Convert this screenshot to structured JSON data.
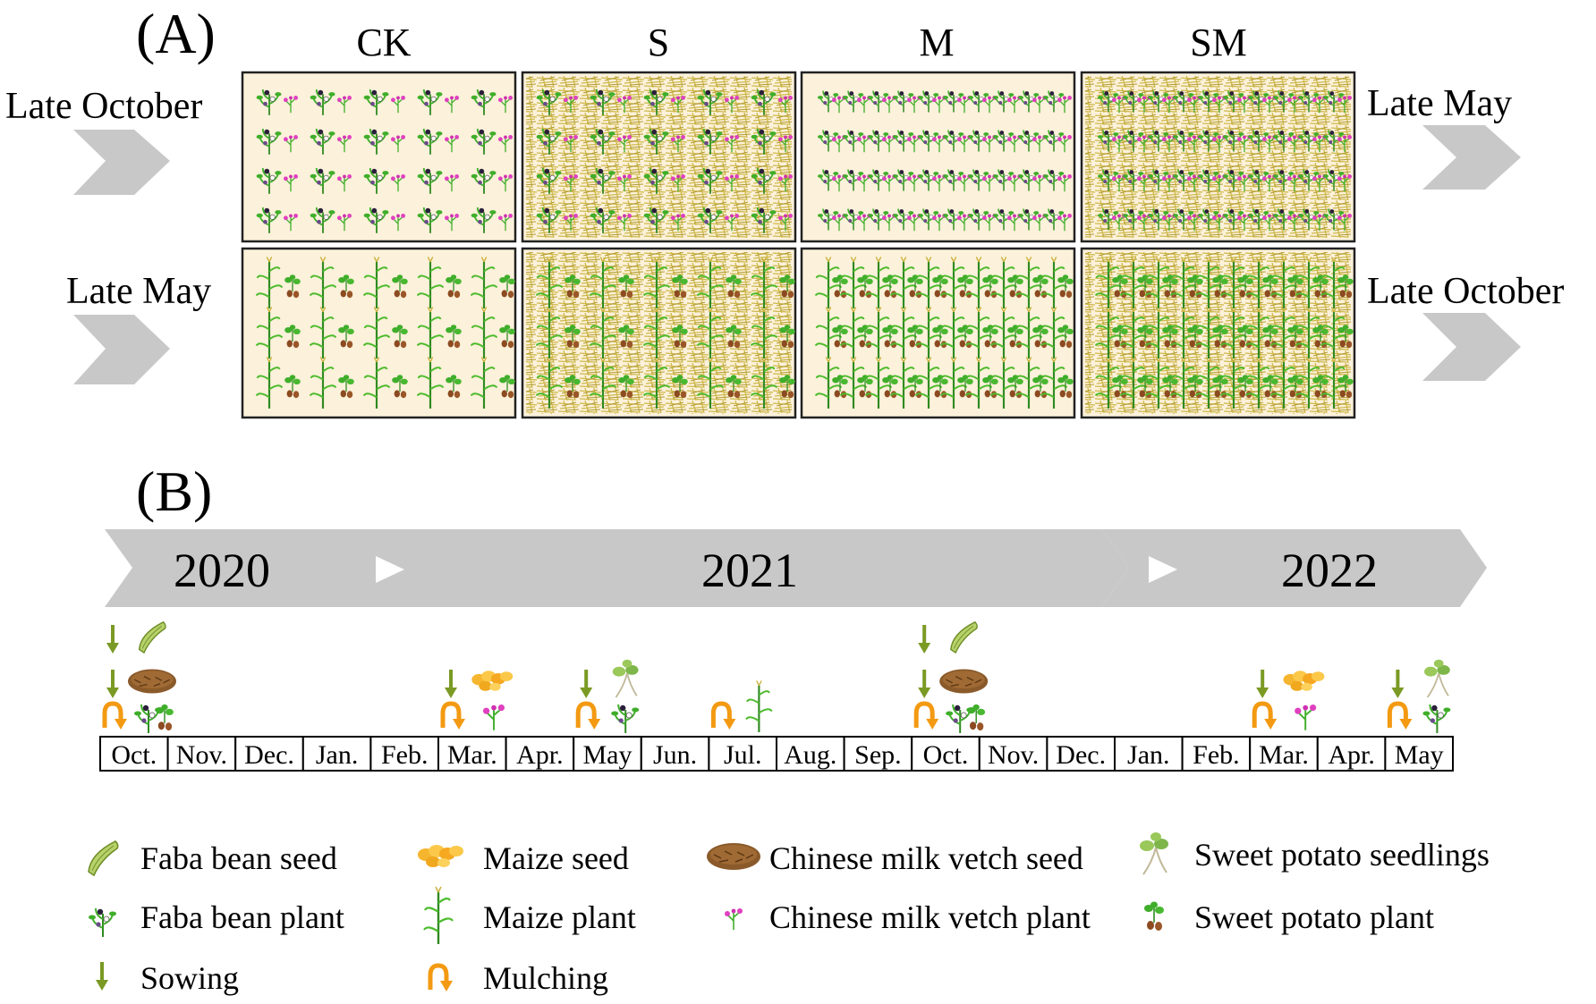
{
  "panel_a": {
    "label": "(A)",
    "columns": [
      "CK",
      "S",
      "M",
      "SM"
    ],
    "left_labels": [
      "Late October",
      "Late May"
    ],
    "right_labels": [
      "Late May",
      "Late October"
    ]
  },
  "panel_b": {
    "label": "(B)",
    "years": [
      "2020",
      "2021",
      "2022"
    ],
    "months": [
      "Oct.",
      "Nov.",
      "Dec.",
      "Jan.",
      "Feb.",
      "Mar.",
      "Apr.",
      "May",
      "Jun.",
      "Jul.",
      "Aug.",
      "Sep.",
      "Oct.",
      "Nov.",
      "Dec.",
      "Jan.",
      "Feb.",
      "Mar.",
      "Apr.",
      "May"
    ]
  },
  "legend": {
    "faba_seed": "Faba bean seed",
    "faba_plant": "Faba bean plant",
    "sowing": "Sowing",
    "maize_seed": "Maize seed",
    "maize_plant": "Maize plant",
    "mulching": "Mulching",
    "cmv_seed": "Chinese milk vetch seed",
    "cmv_plant": "Chinese milk vetch plant",
    "sp_seedlings": "Sweet potato seedlings",
    "sp_plant": "Sweet potato plant"
  },
  "colors": {
    "arrow_gray": "#c8c8c8",
    "plot_bg": "#fcf1da",
    "plant_green": "#3fae2a",
    "straw_yellow": "#c8b23a",
    "flower_pink": "#e040c0",
    "mulch_orange": "#f39a12",
    "sow_green": "#7a9a24"
  },
  "events": [
    {
      "month_index": 0,
      "sowing": [
        "faba_seed",
        "cmv_seed"
      ],
      "mulching": "faba_plant_with_sp"
    },
    {
      "month_index": 5,
      "sowing": [
        "maize_seed"
      ],
      "mulching": "cmv_plant"
    },
    {
      "month_index": 7,
      "sowing": [
        "sp_seedlings"
      ],
      "mulching": "faba_plant"
    },
    {
      "month_index": 9,
      "sowing": [],
      "mulching": "maize_plant"
    },
    {
      "month_index": 12,
      "sowing": [
        "faba_seed",
        "cmv_seed"
      ],
      "mulching": "faba_plant_with_sp"
    },
    {
      "month_index": 17,
      "sowing": [
        "maize_seed"
      ],
      "mulching": "cmv_plant"
    },
    {
      "month_index": 19,
      "sowing": [
        "sp_seedlings"
      ],
      "mulching": "faba_plant"
    }
  ]
}
